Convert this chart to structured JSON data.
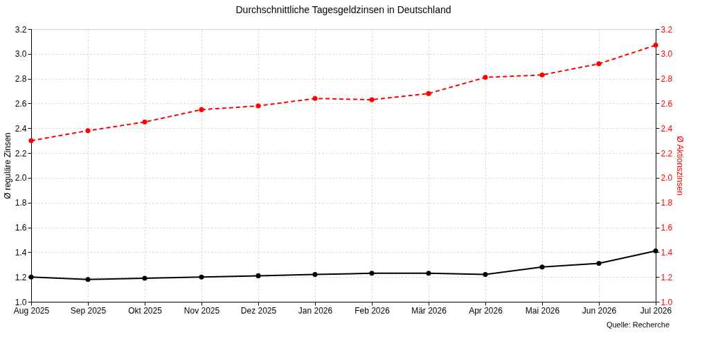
{
  "chart_data": {
    "type": "line",
    "title": "Durchschnittliche Tagesgeldzinsen in Deutschland",
    "categories": [
      "Aug 2025",
      "Sep 2025",
      "Okt 2025",
      "Nov 2025",
      "Dez 2025",
      "Jan 2026",
      "Feb 2026",
      "Mär 2026",
      "Apr 2026",
      "Mai 2026",
      "Jun 2026",
      "Jul 2026"
    ],
    "series": [
      {
        "color": "#000000",
        "line_style": "solid",
        "values": [
          1.2,
          1.18,
          1.19,
          1.2,
          1.21,
          1.22,
          1.23,
          1.23,
          1.22,
          1.28,
          1.31,
          1.41
        ]
      },
      {
        "color": "#ff0000",
        "line_style": "dashed",
        "axis": "y2",
        "values": [
          2.3,
          2.38,
          2.45,
          2.55,
          2.58,
          2.64,
          2.63,
          2.68,
          2.81,
          2.83,
          2.92,
          3.07
        ]
      }
    ],
    "ylabel": "Ø reguläre Zinsen",
    "y2label": "Ø Aktionszinsen",
    "ylim": [
      1.0,
      3.2
    ],
    "yticks": [
      {
        "value": 1.0,
        "label": "1.0"
      },
      {
        "value": 1.2,
        "label": "1.2"
      },
      {
        "value": 1.4,
        "label": "1.4"
      },
      {
        "value": 1.6,
        "label": "1.6"
      },
      {
        "value": 1.8,
        "label": "1.8"
      },
      {
        "value": 2.0,
        "label": "2.0"
      },
      {
        "value": 2.2,
        "label": "2.2"
      },
      {
        "value": 2.4,
        "label": "2.4"
      },
      {
        "value": 2.6,
        "label": "2.6"
      },
      {
        "value": 2.8,
        "label": "2.8"
      },
      {
        "value": 3.0,
        "label": "3.0"
      },
      {
        "value": 3.2,
        "label": "3.2"
      }
    ],
    "y2lim": [
      1.0,
      3.2
    ],
    "y2ticks": [
      {
        "value": 1.0,
        "label": "1.0"
      },
      {
        "value": 1.2,
        "label": "1.2"
      },
      {
        "value": 1.4,
        "label": "1.4"
      },
      {
        "value": 1.6,
        "label": "1.6"
      },
      {
        "value": 1.8,
        "label": "1.8"
      },
      {
        "value": 2.0,
        "label": "2.0"
      },
      {
        "value": 2.2,
        "label": "2.2"
      },
      {
        "value": 2.4,
        "label": "2.4"
      },
      {
        "value": 2.6,
        "label": "2.6"
      },
      {
        "value": 2.8,
        "label": "2.8"
      },
      {
        "value": 3.0,
        "label": "3.0"
      },
      {
        "value": 3.2,
        "label": "3.2"
      }
    ],
    "grid": true,
    "marker": "circle",
    "annotations": [
      "Quelle: Recherche"
    ]
  }
}
